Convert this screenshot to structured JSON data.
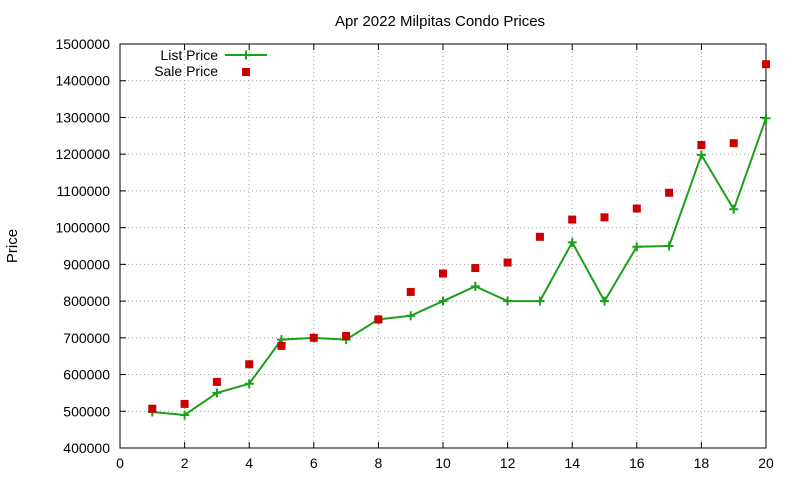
{
  "chart_data": {
    "type": "line",
    "title": "Apr 2022 Milpitas Condo Prices",
    "xlabel": "",
    "ylabel": "Price",
    "xlim": [
      0,
      20
    ],
    "ylim": [
      400000,
      1500000
    ],
    "xticks": [
      "0",
      "2",
      "4",
      "6",
      "8",
      "10",
      "12",
      "14",
      "16",
      "18",
      "20"
    ],
    "yticks": [
      "400000",
      "500000",
      "600000",
      "700000",
      "800000",
      "900000",
      "1000000",
      "1100000",
      "1200000",
      "1300000",
      "1400000",
      "1500000"
    ],
    "grid": true,
    "legend_position": "top-left",
    "series": [
      {
        "name": "List Price",
        "kind": "line-points",
        "marker": "plus",
        "color": "#1aa01a",
        "points": [
          [
            1,
            498000
          ],
          [
            2,
            490000
          ],
          [
            3,
            550000
          ],
          [
            4,
            575000
          ],
          [
            5,
            695000
          ],
          [
            6,
            700000
          ],
          [
            7,
            695000
          ],
          [
            8,
            750000
          ],
          [
            9,
            760000
          ],
          [
            10,
            800000
          ],
          [
            11,
            840000
          ],
          [
            12,
            800000
          ],
          [
            13,
            800000
          ],
          [
            14,
            960000
          ],
          [
            15,
            800000
          ],
          [
            16,
            948000
          ],
          [
            17,
            950000
          ],
          [
            18,
            1198000
          ],
          [
            19,
            1050000
          ],
          [
            20,
            1298000
          ]
        ]
      },
      {
        "name": "Sale Price",
        "kind": "points",
        "marker": "square",
        "color": "#cc0000",
        "points": [
          [
            1,
            507000
          ],
          [
            2,
            520000
          ],
          [
            3,
            580000
          ],
          [
            4,
            628000
          ],
          [
            5,
            678000
          ],
          [
            6,
            700000
          ],
          [
            7,
            705000
          ],
          [
            8,
            750000
          ],
          [
            9,
            825000
          ],
          [
            10,
            875000
          ],
          [
            11,
            890000
          ],
          [
            12,
            905000
          ],
          [
            13,
            975000
          ],
          [
            14,
            1022000
          ],
          [
            15,
            1028000
          ],
          [
            16,
            1052000
          ],
          [
            17,
            1095000
          ],
          [
            18,
            1225000
          ],
          [
            19,
            1230000
          ],
          [
            20,
            1445000
          ]
        ]
      }
    ]
  }
}
